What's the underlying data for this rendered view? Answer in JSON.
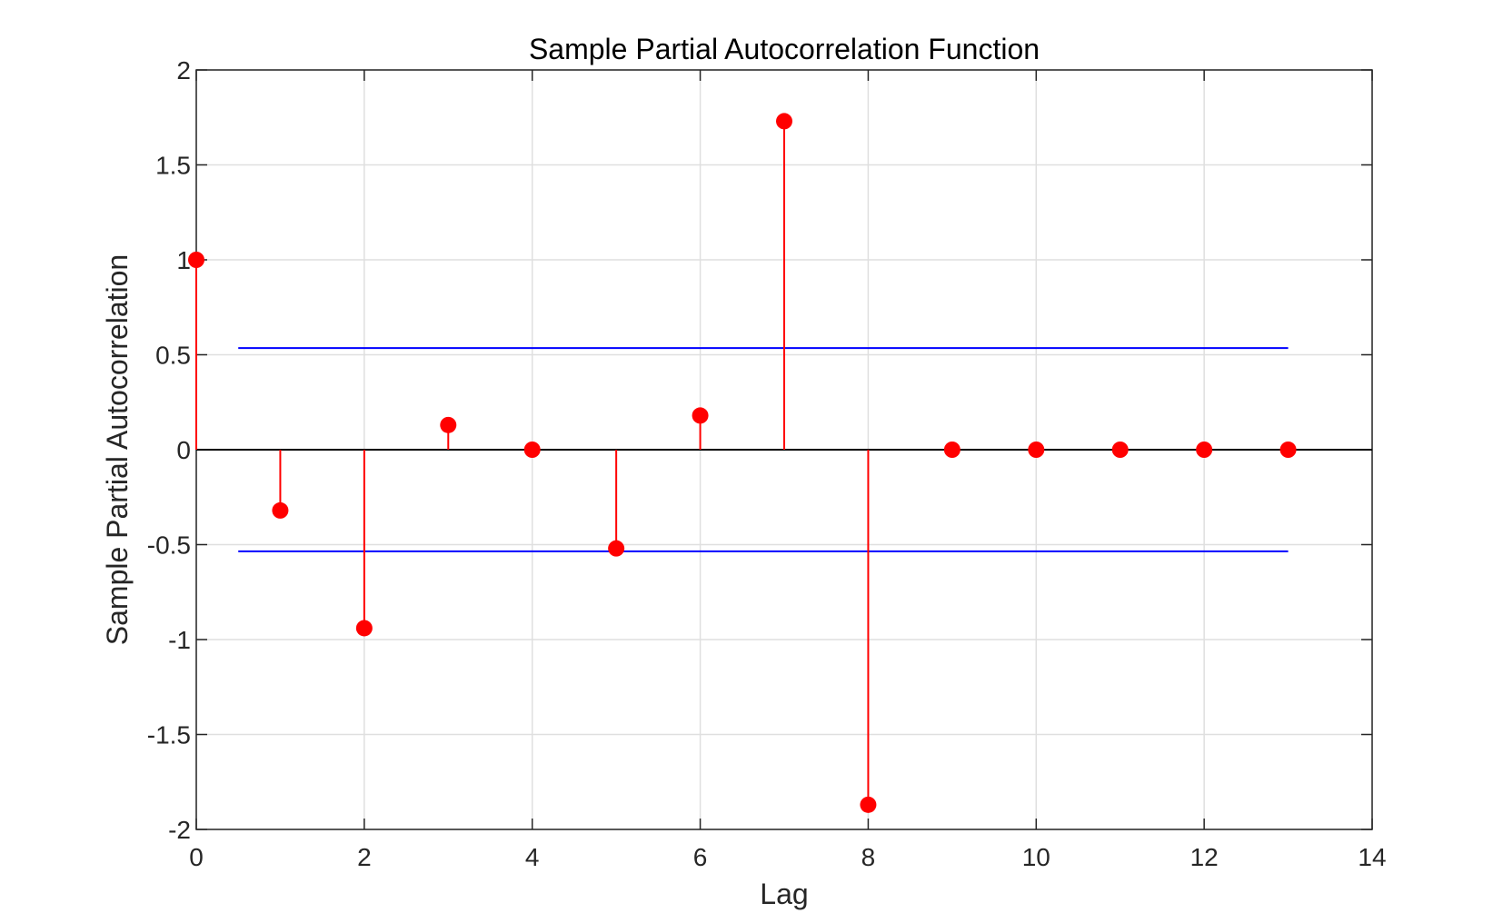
{
  "chart_data": {
    "type": "stem",
    "title": "Sample Partial Autocorrelation Function",
    "xlabel": "Lag",
    "ylabel": "Sample Partial Autocorrelation",
    "xlim": [
      0,
      14
    ],
    "ylim": [
      -2,
      2
    ],
    "xticks": [
      "0",
      "2",
      "4",
      "6",
      "8",
      "10",
      "12",
      "14"
    ],
    "yticks": [
      "-2",
      "-1.5",
      "-1",
      "-0.5",
      "0",
      "0.5",
      "1",
      "1.5",
      "2"
    ],
    "grid": true,
    "series": [
      {
        "x": [
          0,
          1,
          2,
          3,
          4,
          5,
          6,
          7,
          8,
          9,
          10,
          11,
          12,
          13
        ],
        "values": [
          1.0,
          -0.32,
          -0.94,
          0.13,
          0.0,
          -0.52,
          0.18,
          1.73,
          -1.87,
          0.0,
          0.0,
          0.0,
          0.0,
          0.0
        ],
        "color": "#ff0000"
      }
    ],
    "confidence_bounds": {
      "upper": 0.535,
      "lower": -0.535,
      "x_range": [
        0.5,
        13
      ],
      "color": "#0000ff"
    },
    "zero_line_color": "#000000"
  }
}
